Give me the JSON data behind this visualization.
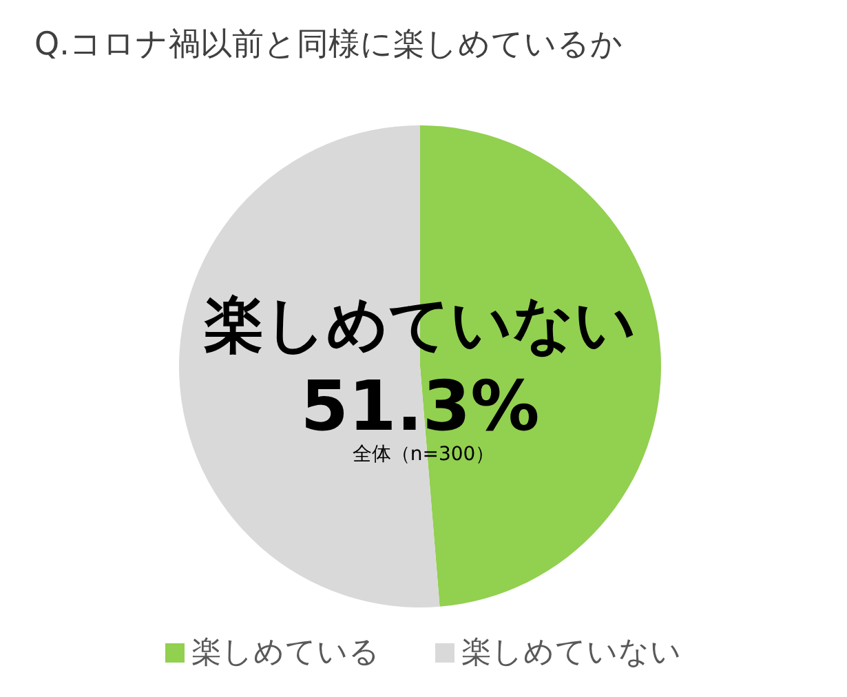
{
  "chart_data": {
    "type": "pie",
    "title": "Q.コロナ禍以前と同様に楽しめているか",
    "categories": [
      "楽しめている",
      "楽しめていない"
    ],
    "values": [
      48.7,
      51.3
    ],
    "colors": [
      "#92d050",
      "#d9d9d9"
    ],
    "value_labels": [
      null,
      "51.3%"
    ],
    "legend": "bottom",
    "annotations": [
      "全体（n=300）"
    ]
  }
}
